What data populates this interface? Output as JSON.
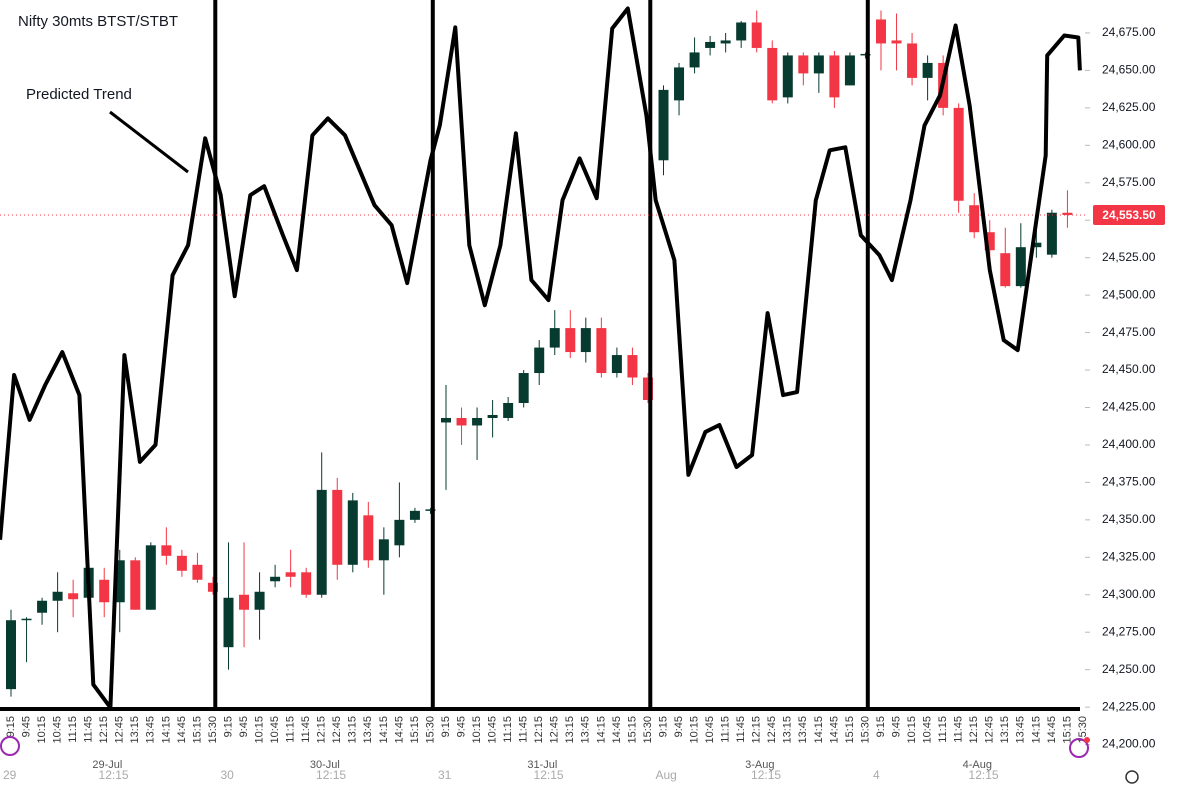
{
  "chart_data": {
    "type": "candlestick",
    "title": "Nifty 30mts BTST/STBT",
    "annotation": "Predicted Trend",
    "up_color": "#073b30",
    "down_color": "#f23645",
    "ylim": [
      24163,
      24697
    ],
    "yticks": [
      {
        "value": 24200,
        "label": "24,200.00"
      },
      {
        "value": 24225,
        "label": "24,225.00"
      },
      {
        "value": 24250,
        "label": "24,250.00"
      },
      {
        "value": 24275,
        "label": "24,275.00"
      },
      {
        "value": 24300,
        "label": "24,300.00"
      },
      {
        "value": 24325,
        "label": "24,325.00"
      },
      {
        "value": 24350,
        "label": "24,350.00"
      },
      {
        "value": 24375,
        "label": "24,375.00"
      },
      {
        "value": 24400,
        "label": "24,400.00"
      },
      {
        "value": 24425,
        "label": "24,425.00"
      },
      {
        "value": 24450,
        "label": "24,450.00"
      },
      {
        "value": 24475,
        "label": "24,475.00"
      },
      {
        "value": 24500,
        "label": "24,500.00"
      },
      {
        "value": 24525,
        "label": "24,525.00"
      },
      {
        "value": 24550,
        "label": "24,550.00"
      },
      {
        "value": 24575,
        "label": "24,575.00"
      },
      {
        "value": 24600,
        "label": "24,600.00"
      },
      {
        "value": 24625,
        "label": "24,625.00"
      },
      {
        "value": 24650,
        "label": "24,650.00"
      },
      {
        "value": 24675,
        "label": "24,675.00"
      }
    ],
    "last_price": {
      "value": 24553.5,
      "label": "24,553.50"
    },
    "days": [
      {
        "short": "29",
        "date": "29-Jul",
        "time": "12:15",
        "ticks": [
          "9:15",
          "9:45",
          "10:15",
          "10:45",
          "11:15",
          "11:45",
          "12:15",
          "12:45",
          "13:15",
          "13:45",
          "14:15",
          "14:45",
          "15:15",
          "15:30"
        ],
        "candles": [
          {
            "open": 24237,
            "high": 24290,
            "low": 24232,
            "close": 24283
          },
          {
            "open": 24283,
            "high": 24285,
            "low": 24255,
            "close": 24284
          },
          {
            "open": 24288,
            "high": 24298,
            "low": 24280,
            "close": 24296
          },
          {
            "open": 24296,
            "high": 24315,
            "low": 24275,
            "close": 24302
          },
          {
            "open": 24301,
            "high": 24310,
            "low": 24285,
            "close": 24297
          },
          {
            "open": 24298,
            "high": 24320,
            "low": 24285,
            "close": 24318
          },
          {
            "open": 24310,
            "high": 24318,
            "low": 24285,
            "close": 24295
          },
          {
            "open": 24295,
            "high": 24330,
            "low": 24275,
            "close": 24323
          },
          {
            "open": 24323,
            "high": 24325,
            "low": 24290,
            "close": 24290
          },
          {
            "open": 24290,
            "high": 24335,
            "low": 24290,
            "close": 24333
          },
          {
            "open": 24333,
            "high": 24345,
            "low": 24320,
            "close": 24326
          },
          {
            "open": 24326,
            "high": 24330,
            "low": 24312,
            "close": 24316
          },
          {
            "open": 24320,
            "high": 24328,
            "low": 24308,
            "close": 24310
          },
          {
            "open": 24308,
            "high": 24312,
            "low": 24300,
            "close": 24302
          }
        ]
      },
      {
        "short": "30",
        "date": "30-Jul",
        "time": "12:15",
        "ticks": [
          "9:15",
          "9:45",
          "10:15",
          "10:45",
          "11:15",
          "11:45",
          "12:15",
          "12:45",
          "13:15",
          "13:45",
          "14:15",
          "14:45",
          "15:15",
          "15:30"
        ],
        "candles": [
          {
            "open": 24265,
            "high": 24335,
            "low": 24250,
            "close": 24298
          },
          {
            "open": 24300,
            "high": 24335,
            "low": 24265,
            "close": 24290
          },
          {
            "open": 24290,
            "high": 24315,
            "low": 24270,
            "close": 24302
          },
          {
            "open": 24309,
            "high": 24320,
            "low": 24305,
            "close": 24312
          },
          {
            "open": 24315,
            "high": 24330,
            "low": 24305,
            "close": 24312
          },
          {
            "open": 24315,
            "high": 24318,
            "low": 24298,
            "close": 24300
          },
          {
            "open": 24300,
            "high": 24395,
            "low": 24298,
            "close": 24370
          },
          {
            "open": 24370,
            "high": 24378,
            "low": 24310,
            "close": 24320
          },
          {
            "open": 24320,
            "high": 24368,
            "low": 24315,
            "close": 24363
          },
          {
            "open": 24353,
            "high": 24362,
            "low": 24318,
            "close": 24323
          },
          {
            "open": 24323,
            "high": 24345,
            "low": 24300,
            "close": 24337
          },
          {
            "open": 24333,
            "high": 24375,
            "low": 24325,
            "close": 24350
          },
          {
            "open": 24350,
            "high": 24358,
            "low": 24348,
            "close": 24356
          },
          {
            "open": 24356,
            "high": 24358,
            "low": 24354,
            "close": 24357
          }
        ]
      },
      {
        "short": "31",
        "date": "31-Jul",
        "time": "12:15",
        "ticks": [
          "9:15",
          "9:45",
          "10:15",
          "10:45",
          "11:15",
          "11:45",
          "12:15",
          "12:45",
          "13:15",
          "13:45",
          "14:15",
          "14:45",
          "15:15",
          "15:30"
        ],
        "candles": [
          {
            "open": 24415,
            "high": 24440,
            "low": 24370,
            "close": 24418
          },
          {
            "open": 24418,
            "high": 24425,
            "low": 24400,
            "close": 24413
          },
          {
            "open": 24413,
            "high": 24425,
            "low": 24390,
            "close": 24418
          },
          {
            "open": 24418,
            "high": 24430,
            "low": 24405,
            "close": 24420
          },
          {
            "open": 24418,
            "high": 24432,
            "low": 24416,
            "close": 24428
          },
          {
            "open": 24428,
            "high": 24450,
            "low": 24425,
            "close": 24448
          },
          {
            "open": 24448,
            "high": 24470,
            "low": 24440,
            "close": 24465
          },
          {
            "open": 24465,
            "high": 24490,
            "low": 24460,
            "close": 24478
          },
          {
            "open": 24478,
            "high": 24490,
            "low": 24458,
            "close": 24462
          },
          {
            "open": 24462,
            "high": 24485,
            "low": 24455,
            "close": 24478
          },
          {
            "open": 24478,
            "high": 24485,
            "low": 24445,
            "close": 24448
          },
          {
            "open": 24448,
            "high": 24465,
            "low": 24445,
            "close": 24460
          },
          {
            "open": 24460,
            "high": 24465,
            "low": 24440,
            "close": 24445
          },
          {
            "open": 24445,
            "high": 24448,
            "low": 24428,
            "close": 24430
          }
        ]
      },
      {
        "short": "Aug",
        "date": "3-Aug",
        "time": "12:15",
        "ticks": [
          "9:15",
          "9:45",
          "10:15",
          "10:45",
          "11:15",
          "11:45",
          "12:15",
          "12:45",
          "13:15",
          "13:45",
          "14:15",
          "14:45",
          "15:15",
          "15:30"
        ],
        "candles": [
          {
            "open": 24590,
            "high": 24640,
            "low": 24580,
            "close": 24637
          },
          {
            "open": 24630,
            "high": 24655,
            "low": 24620,
            "close": 24652
          },
          {
            "open": 24652,
            "high": 24672,
            "low": 24648,
            "close": 24662
          },
          {
            "open": 24665,
            "high": 24673,
            "low": 24660,
            "close": 24669
          },
          {
            "open": 24668,
            "high": 24675,
            "low": 24662,
            "close": 24670
          },
          {
            "open": 24670,
            "high": 24683,
            "low": 24665,
            "close": 24682
          },
          {
            "open": 24682,
            "high": 24690,
            "low": 24662,
            "close": 24665
          },
          {
            "open": 24665,
            "high": 24670,
            "low": 24628,
            "close": 24630
          },
          {
            "open": 24632,
            "high": 24662,
            "low": 24628,
            "close": 24660
          },
          {
            "open": 24660,
            "high": 24662,
            "low": 24640,
            "close": 24648
          },
          {
            "open": 24648,
            "high": 24662,
            "low": 24635,
            "close": 24660
          },
          {
            "open": 24660,
            "high": 24663,
            "low": 24625,
            "close": 24632
          },
          {
            "open": 24640,
            "high": 24662,
            "low": 24640,
            "close": 24660
          },
          {
            "open": 24660,
            "high": 24662,
            "low": 24658,
            "close": 24661
          }
        ]
      },
      {
        "short": "4",
        "date": "4-Aug",
        "time": "12:15",
        "ticks": [
          "9:15",
          "9:45",
          "10:15",
          "10:45",
          "11:15",
          "11:45",
          "12:15",
          "12:45",
          "13:15",
          "13:45",
          "14:15",
          "14:45",
          "15:15",
          "15:30"
        ],
        "candles": [
          {
            "open": 24684,
            "high": 24690,
            "low": 24650,
            "close": 24668
          },
          {
            "open": 24670,
            "high": 24688,
            "low": 24650,
            "close": 24668
          },
          {
            "open": 24668,
            "high": 24675,
            "low": 24640,
            "close": 24645
          },
          {
            "open": 24645,
            "high": 24660,
            "low": 24630,
            "close": 24655
          },
          {
            "open": 24655,
            "high": 24660,
            "low": 24620,
            "close": 24625
          },
          {
            "open": 24625,
            "high": 24628,
            "low": 24555,
            "close": 24563
          },
          {
            "open": 24560,
            "high": 24568,
            "low": 24538,
            "close": 24542
          },
          {
            "open": 24542,
            "high": 24550,
            "low": 24520,
            "close": 24530
          },
          {
            "open": 24528,
            "high": 24545,
            "low": 24505,
            "close": 24506
          },
          {
            "open": 24506,
            "high": 24548,
            "low": 24505,
            "close": 24532
          },
          {
            "open": 24532,
            "high": 24555,
            "low": 24525,
            "close": 24535
          },
          {
            "open": 24527,
            "high": 24557,
            "low": 24525,
            "close": 24555
          },
          {
            "open": 24555,
            "high": 24570,
            "low": 24545,
            "close": 24553.5
          }
        ]
      }
    ],
    "trend": {
      "x": [
        -0.7,
        0.2,
        1.2,
        2.2,
        3.3,
        4.4,
        5.3,
        6.4,
        7.3,
        8.3,
        9.3,
        10.4,
        11.4,
        12.5,
        13.5,
        14.4,
        15.4,
        16.3,
        17.5,
        18.4,
        19.4,
        20.4,
        21.5,
        23.4,
        24.5,
        25.5,
        27.0,
        27.6,
        28.6,
        29.5,
        30.5,
        31.5,
        32.5,
        33.5,
        34.6,
        35.5,
        36.6,
        37.7,
        38.7,
        39.7,
        40.9,
        41.5,
        42.7,
        43.6,
        44.7,
        45.6,
        46.7,
        47.7,
        48.7,
        49.7,
        50.6,
        51.8,
        52.7,
        53.7,
        54.7,
        55.9,
        56.7,
        57.9,
        58.8,
        59.8,
        60.8,
        61.7,
        63.0,
        63.9,
        64.8,
        66.6,
        66.7,
        67.8,
        68.7,
        68.8
      ],
      "values": [
        24336.7,
        24446.7,
        24416.7,
        24440,
        24462,
        24433.3,
        24240,
        24224.7,
        24460,
        24388.7,
        24400,
        24513.3,
        24533.3,
        24604.7,
        24566.7,
        24499.3,
        24566.7,
        24572.7,
        24540,
        24516.7,
        24606.7,
        24618,
        24606.7,
        24560,
        24546.7,
        24508,
        24590,
        24613.3,
        24678.7,
        24533.3,
        24493.3,
        24533.3,
        24608,
        24510,
        24496.7,
        24563.3,
        24591.3,
        24564.7,
        24678,
        24691.3,
        24620,
        24563.3,
        24523.3,
        24380,
        24408.7,
        24413.3,
        24385.3,
        24393.3,
        24488,
        24433.3,
        24435.3,
        24563.3,
        24596.7,
        24598.7,
        24540,
        24526.7,
        24510,
        24563.3,
        24613.3,
        24633.3,
        24680,
        24626.7,
        24516.7,
        24470,
        24463.3,
        24593.3,
        24660,
        24673.3,
        24672,
        24650
      ]
    }
  }
}
